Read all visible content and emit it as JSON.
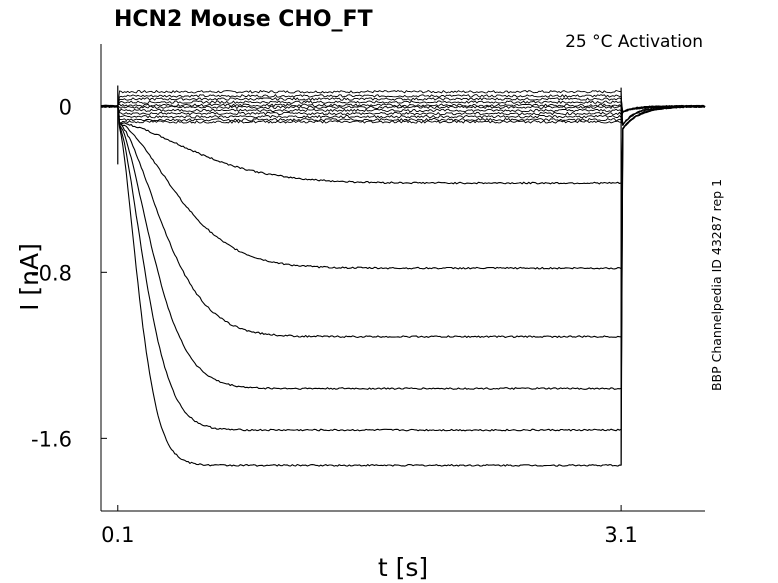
{
  "chart_data": {
    "type": "line",
    "title": "HCN2  Mouse  CHO_FT",
    "annotation": "25 °C  Activation",
    "side_label": "BBP Channelpedia ID 43287 rep 1",
    "xlabel": "t [s]",
    "ylabel": "I [nA]",
    "xlim": [
      0.0,
      3.6
    ],
    "ylim": [
      -1.95,
      0.3
    ],
    "xticks": [
      {
        "value": 0.1,
        "label": "0.1"
      },
      {
        "value": 3.1,
        "label": "3.1"
      }
    ],
    "yticks": [
      {
        "value": 0,
        "label": "0"
      },
      {
        "value": -0.8,
        "label": "-0.8"
      },
      {
        "value": -1.6,
        "label": "-1.6"
      }
    ],
    "pulse": {
      "start": 0.1,
      "end": 3.1
    },
    "grid": false,
    "legend": "none",
    "line_color": "#000000",
    "sweeps": {
      "flat_levels": [
        0.07,
        0.05,
        0.035,
        0.02,
        0.005,
        -0.005,
        -0.02,
        -0.035,
        -0.05,
        -0.065,
        -0.075
      ],
      "activating": [
        {
          "steady": -0.37,
          "tau": 0.6
        },
        {
          "steady": -0.78,
          "tau": 0.45
        },
        {
          "steady": -1.11,
          "tau": 0.35
        },
        {
          "steady": -1.36,
          "tau": 0.27
        },
        {
          "steady": -1.56,
          "tau": 0.21
        },
        {
          "steady": -1.73,
          "tau": 0.16
        }
      ]
    }
  }
}
